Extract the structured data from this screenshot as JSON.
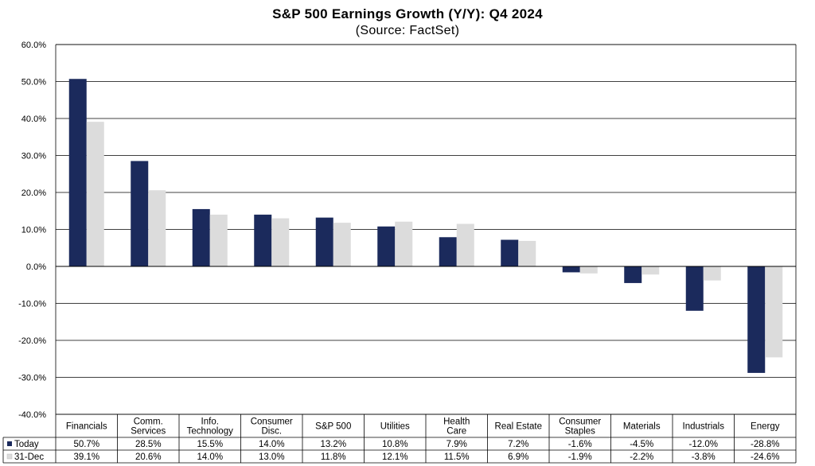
{
  "chart_data": {
    "type": "bar",
    "title": "S&P 500 Earnings Growth (Y/Y): Q4 2024",
    "subtitle": "(Source: FactSet)",
    "categories": [
      [
        "Financials"
      ],
      [
        "Comm.",
        "Services"
      ],
      [
        "Info.",
        "Technology"
      ],
      [
        "Consumer",
        "Disc."
      ],
      [
        "S&P 500"
      ],
      [
        "Utilities"
      ],
      [
        "Health",
        "Care"
      ],
      [
        "Real Estate"
      ],
      [
        "Consumer",
        "Staples"
      ],
      [
        "Materials"
      ],
      [
        "Industrials"
      ],
      [
        "Energy"
      ]
    ],
    "series": [
      {
        "name": "Today",
        "color": "#1b2a5c",
        "values": [
          50.7,
          28.5,
          15.5,
          14.0,
          13.2,
          10.8,
          7.9,
          7.2,
          -1.6,
          -4.5,
          -12.0,
          -28.8
        ],
        "labels": [
          "50.7%",
          "28.5%",
          "15.5%",
          "14.0%",
          "13.2%",
          "10.8%",
          "7.9%",
          "7.2%",
          "-1.6%",
          "-4.5%",
          "-12.0%",
          "-28.8%"
        ]
      },
      {
        "name": "31-Dec",
        "color": "#dcdcdc",
        "values": [
          39.1,
          20.6,
          14.0,
          13.0,
          11.8,
          12.1,
          11.5,
          6.9,
          -1.9,
          -2.2,
          -3.8,
          -24.6
        ],
        "labels": [
          "39.1%",
          "20.6%",
          "14.0%",
          "13.0%",
          "11.8%",
          "12.1%",
          "11.5%",
          "6.9%",
          "-1.9%",
          "-2.2%",
          "-3.8%",
          "-24.6%"
        ]
      }
    ],
    "yticks": [
      "-40.0%",
      "-30.0%",
      "-20.0%",
      "-10.0%",
      "0.0%",
      "10.0%",
      "20.0%",
      "30.0%",
      "40.0%",
      "50.0%",
      "60.0%"
    ],
    "ylim": [
      -40,
      60
    ],
    "ystep": 10,
    "grid": true,
    "legend_placement": "data-table-below"
  }
}
